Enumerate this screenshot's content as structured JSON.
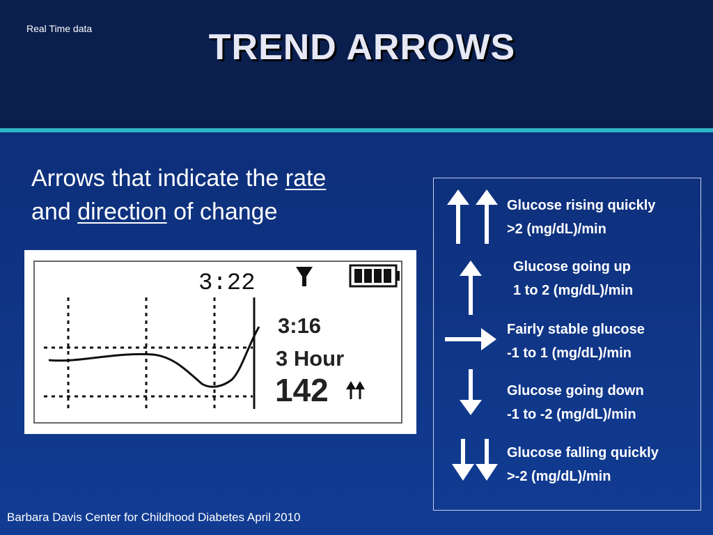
{
  "header": {
    "corner_label": "Real Time data",
    "title": "TREND ARROWS"
  },
  "intro": {
    "line1_prefix": "Arrows that indicate the ",
    "line1_underlined": "rate",
    "line2_prefix": "and ",
    "line2_underlined": "direction",
    "line2_suffix": " of change"
  },
  "device_screen": {
    "clock": "3:22",
    "cursor_time": "3:16",
    "range_label": "3 Hour",
    "glucose_value": "142",
    "trend_icon": "double-up-arrow-icon"
  },
  "legend": [
    {
      "icon": "double-up-arrow-icon",
      "title": "Glucose rising quickly",
      "rate": ">2 (mg/dL)/min"
    },
    {
      "icon": "up-arrow-icon",
      "title": "Glucose going up",
      "rate": "1 to 2 (mg/dL)/min"
    },
    {
      "icon": "right-arrow-icon",
      "title": "Fairly stable glucose",
      "rate": "-1 to 1 (mg/dL)/min"
    },
    {
      "icon": "down-arrow-icon",
      "title": "Glucose going down",
      "rate": "-1 to -2 (mg/dL)/min"
    },
    {
      "icon": "double-down-arrow-icon",
      "title": "Glucose falling quickly",
      "rate": ">-2 (mg/dL)/min"
    }
  ],
  "footer": {
    "credit": "Barbara Davis Center for Childhood Diabetes April 2010"
  }
}
